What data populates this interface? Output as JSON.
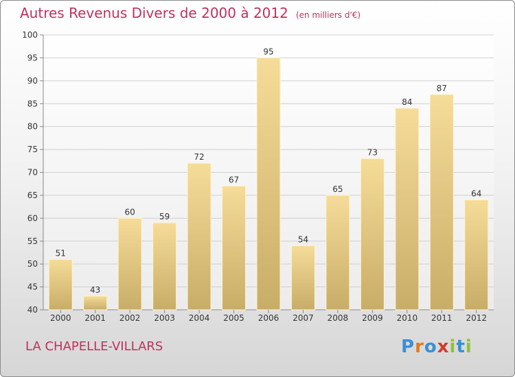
{
  "title": "Autres Revenus Divers de 2000 à 2012",
  "unit_label": "(en milliers d'€)",
  "town": "LA CHAPELLE-VILLARS",
  "logo": {
    "letters": [
      "P",
      "r",
      "o",
      "x",
      "i",
      "t",
      "i"
    ],
    "colors": [
      "#3a8fd6",
      "#e07a1f",
      "#3a8fd6",
      "#d43a2a",
      "#8fc23a",
      "#3a8fd6",
      "#8fc23a"
    ]
  },
  "colors": {
    "title": "#c0305a",
    "bar_light": "#f5dc98",
    "bar_dark": "#c8ad68",
    "grid": "#cfcfcf"
  },
  "chart_data": {
    "type": "bar",
    "categories": [
      "2000",
      "2001",
      "2002",
      "2003",
      "2004",
      "2005",
      "2006",
      "2007",
      "2008",
      "2009",
      "2010",
      "2011",
      "2012"
    ],
    "values": [
      51,
      43,
      60,
      59,
      72,
      67,
      95,
      54,
      65,
      73,
      84,
      87,
      64
    ],
    "ylim": [
      40,
      100
    ],
    "yticks": [
      40,
      45,
      50,
      55,
      60,
      65,
      70,
      75,
      80,
      85,
      90,
      95,
      100
    ],
    "grid": true
  }
}
